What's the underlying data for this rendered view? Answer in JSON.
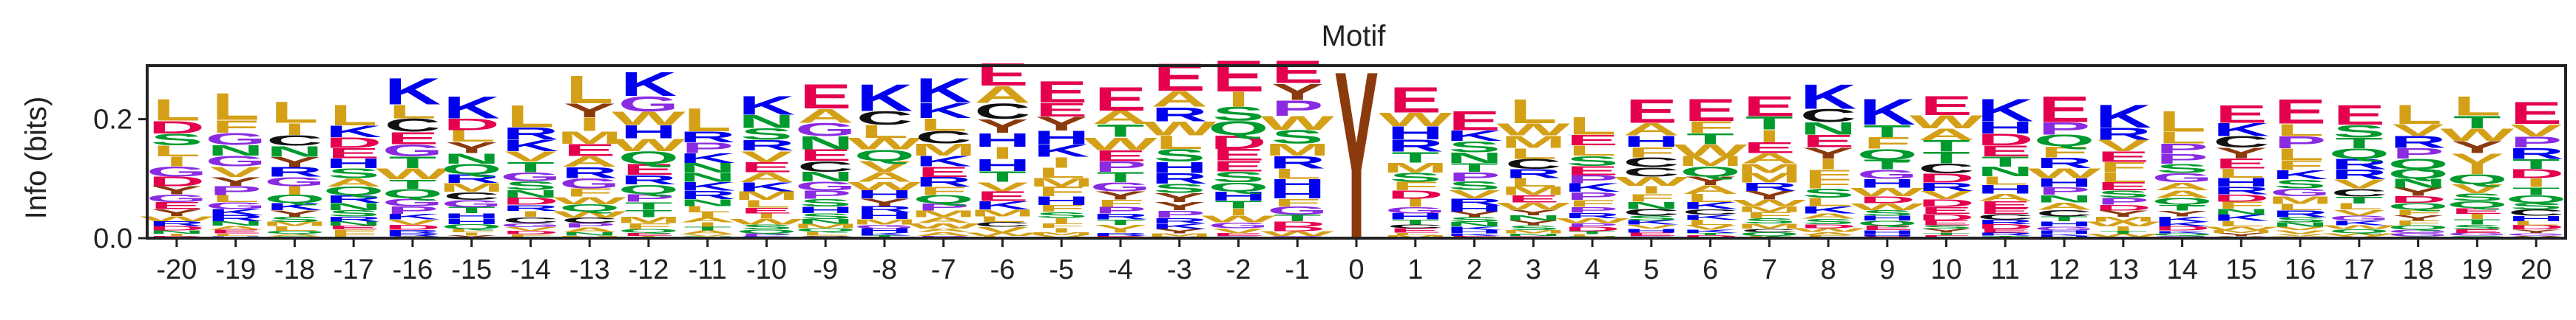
{
  "chart_data": {
    "type": "sequence-logo",
    "title": "Motif",
    "xlabel": "",
    "ylabel": "Info (bits)",
    "ylim": [
      0,
      0.29
    ],
    "yticks": [
      "0.0",
      "0.2"
    ],
    "positions": [
      "-20",
      "-19",
      "-18",
      "-17",
      "-16",
      "-15",
      "-14",
      "-13",
      "-12",
      "-11",
      "-10",
      "-9",
      "-8",
      "-7",
      "-6",
      "-5",
      "-4",
      "-3",
      "-2",
      "-1",
      "0",
      "1",
      "2",
      "3",
      "4",
      "5",
      "6",
      "7",
      "8",
      "9",
      "10",
      "11",
      "12",
      "13",
      "14",
      "15",
      "16",
      "17",
      "18",
      "19",
      "20"
    ],
    "totals": [
      0.235,
      0.245,
      0.23,
      0.225,
      0.27,
      0.24,
      0.225,
      0.275,
      0.28,
      0.22,
      0.24,
      0.26,
      0.26,
      0.27,
      0.295,
      0.265,
      0.255,
      0.295,
      0.3,
      0.3,
      0.29,
      0.255,
      0.215,
      0.235,
      0.205,
      0.235,
      0.235,
      0.24,
      0.26,
      0.235,
      0.24,
      0.235,
      0.24,
      0.225,
      0.215,
      0.225,
      0.235,
      0.225,
      0.225,
      0.24,
      0.23
    ],
    "top_letters": [
      "L",
      "L",
      "L",
      "L",
      "K",
      "K",
      "L",
      "L",
      "K",
      "L",
      "K",
      "E",
      "K",
      "K",
      "E",
      "E",
      "E",
      "E",
      "E",
      "E",
      "Y",
      "E",
      "E",
      "L",
      "L",
      "E",
      "E",
      "E",
      "K",
      "K",
      "E",
      "K",
      "E",
      "K",
      "L",
      "E",
      "E",
      "E",
      "L",
      "L",
      "E"
    ],
    "letter_colors": {
      "K": "#0000ee",
      "R": "#0000ee",
      "H": "#0000ee",
      "E": "#e4004f",
      "D": "#e4004f",
      "L": "#d4a017",
      "I": "#d4a017",
      "V": "#d4a017",
      "A": "#d4a017",
      "M": "#d4a017",
      "F": "#d4a017",
      "W": "#d4a017",
      "Y": "#8b3a0e",
      "S": "#009a2e",
      "T": "#009a2e",
      "N": "#009a2e",
      "Q": "#009a2e",
      "G": "#8a2be2",
      "P": "#8a2be2",
      "C": "#111111"
    }
  }
}
